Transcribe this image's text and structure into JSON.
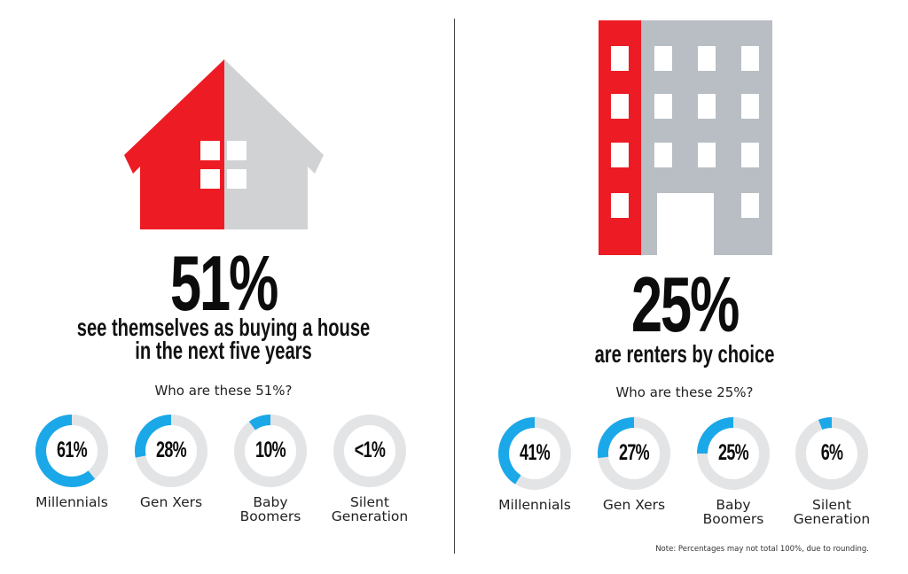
{
  "colors": {
    "red": "#ed1c24",
    "house_gray": "#d1d2d4",
    "building_gray": "#b8bec4",
    "donut_blue": "#1ba8e8",
    "donut_gray": "#e3e4e6"
  },
  "left_panel": {
    "icon": "house-icon",
    "headline": "51%",
    "subtitle_line1": "see themselves as buying a house",
    "subtitle_line2": "in the next five years",
    "question": "Who are these 51%?"
  },
  "right_panel": {
    "icon": "apartment-building-icon",
    "headline": "25%",
    "subtitle_line1": "are renters by choice",
    "question": "Who are these 25%?"
  },
  "note": "Note: Percentages may not total 100%, due to rounding.",
  "chart_data": [
    {
      "type": "pie",
      "title": "Who are these 51%?",
      "subtitle": "see themselves as buying a house in the next five years",
      "categories": [
        "Millennials",
        "Gen Xers",
        "Baby Boomers",
        "Silent Generation"
      ],
      "values": [
        61,
        28,
        10,
        0.5
      ],
      "labels": [
        "61%",
        "28%",
        "10%",
        "<1%"
      ],
      "unit": "%"
    },
    {
      "type": "pie",
      "title": "Who are these 25%?",
      "subtitle": "are renters by choice",
      "categories": [
        "Millennials",
        "Gen Xers",
        "Baby Boomers",
        "Silent Generation"
      ],
      "values": [
        41,
        27,
        25,
        6
      ],
      "labels": [
        "41%",
        "27%",
        "25%",
        "6%"
      ],
      "unit": "%"
    }
  ],
  "left_donuts": [
    {
      "label_line1": "Millennials",
      "label_line2": "",
      "pct": "61%"
    },
    {
      "label_line1": "Gen Xers",
      "label_line2": "",
      "pct": "28%"
    },
    {
      "label_line1": "Baby",
      "label_line2": "Boomers",
      "pct": "10%"
    },
    {
      "label_line1": "Silent",
      "label_line2": "Generation",
      "pct": "<1%"
    }
  ],
  "right_donuts": [
    {
      "label_line1": "Millennials",
      "label_line2": "",
      "pct": "41%"
    },
    {
      "label_line1": "Gen Xers",
      "label_line2": "",
      "pct": "27%"
    },
    {
      "label_line1": "Baby",
      "label_line2": "Boomers",
      "pct": "25%"
    },
    {
      "label_line1": "Silent",
      "label_line2": "Generation",
      "pct": "6%"
    }
  ]
}
